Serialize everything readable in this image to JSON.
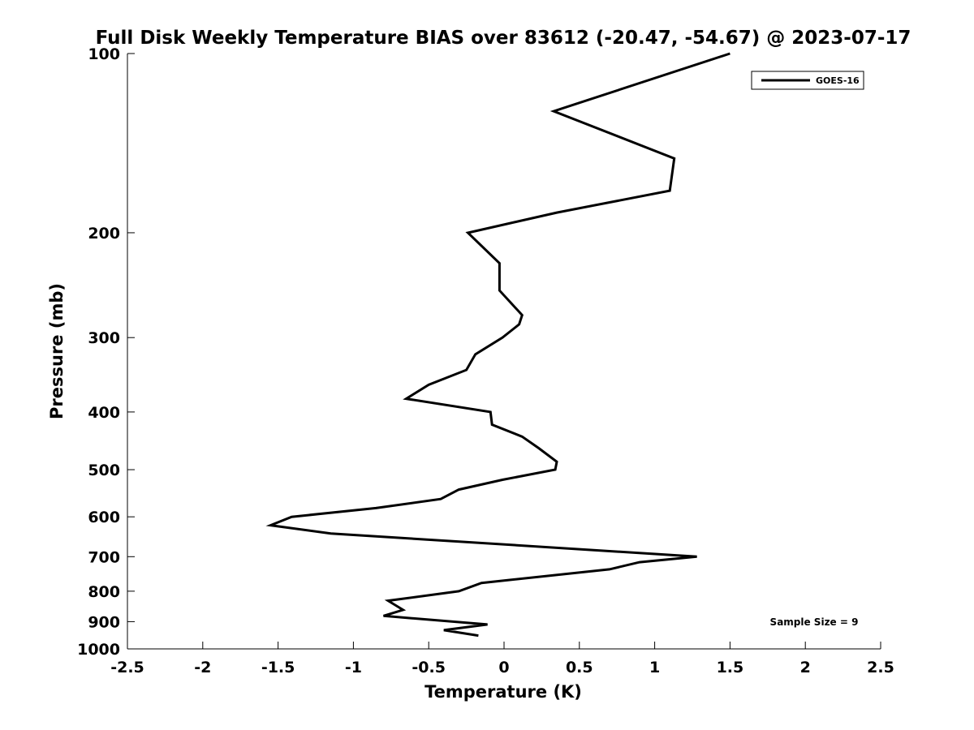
{
  "chart_data": {
    "type": "line",
    "title": "Full Disk Weekly Temperature BIAS over 83612 (-20.47, -54.67) @ 2023-07-17",
    "xlabel": "Temperature (K)",
    "ylabel": "Pressure (mb)",
    "xlim": [
      -2.5,
      2.5
    ],
    "ylim": [
      100,
      1000
    ],
    "y_scale": "log",
    "y_reversed": true,
    "x_ticks": [
      -2.5,
      -2,
      -1.5,
      -1,
      -0.5,
      0,
      0.5,
      1,
      1.5,
      2,
      2.5
    ],
    "x_tick_labels": [
      "-2.5",
      "-2",
      "-1.5",
      "-1",
      "-0.5",
      "0",
      "0.5",
      "1",
      "1.5",
      "2",
      "2.5"
    ],
    "y_ticks": [
      100,
      200,
      300,
      400,
      500,
      600,
      700,
      800,
      900,
      1000
    ],
    "y_tick_labels": [
      "100",
      "200",
      "300",
      "400",
      "500",
      "600",
      "700",
      "800",
      "900",
      "1000"
    ],
    "grid": false,
    "legend_position": "top-right",
    "annotation": "Sample Size = 9",
    "series": [
      {
        "name": "GOES-16",
        "color": "#000000",
        "points": [
          {
            "x": 1.5,
            "p": 100
          },
          {
            "x": 0.33,
            "p": 125
          },
          {
            "x": 1.13,
            "p": 150
          },
          {
            "x": 1.1,
            "p": 170
          },
          {
            "x": 0.35,
            "p": 185
          },
          {
            "x": -0.24,
            "p": 200
          },
          {
            "x": -0.03,
            "p": 225
          },
          {
            "x": -0.03,
            "p": 250
          },
          {
            "x": 0.12,
            "p": 275
          },
          {
            "x": 0.1,
            "p": 285
          },
          {
            "x": -0.01,
            "p": 300
          },
          {
            "x": -0.19,
            "p": 320
          },
          {
            "x": -0.25,
            "p": 340
          },
          {
            "x": -0.5,
            "p": 360
          },
          {
            "x": -0.65,
            "p": 380
          },
          {
            "x": -0.09,
            "p": 400
          },
          {
            "x": -0.08,
            "p": 420
          },
          {
            "x": 0.12,
            "p": 440
          },
          {
            "x": 0.23,
            "p": 460
          },
          {
            "x": 0.35,
            "p": 485
          },
          {
            "x": 0.34,
            "p": 500
          },
          {
            "x": -0.01,
            "p": 520
          },
          {
            "x": -0.3,
            "p": 540
          },
          {
            "x": -0.42,
            "p": 560
          },
          {
            "x": -0.85,
            "p": 580
          },
          {
            "x": -1.41,
            "p": 600
          },
          {
            "x": -1.55,
            "p": 620
          },
          {
            "x": -1.15,
            "p": 640
          },
          {
            "x": 1.28,
            "p": 700
          },
          {
            "x": 0.9,
            "p": 715
          },
          {
            "x": 0.7,
            "p": 735
          },
          {
            "x": -0.15,
            "p": 775
          },
          {
            "x": -0.3,
            "p": 800
          },
          {
            "x": -0.77,
            "p": 830
          },
          {
            "x": -0.67,
            "p": 860
          },
          {
            "x": -0.8,
            "p": 880
          },
          {
            "x": -0.11,
            "p": 910
          },
          {
            "x": -0.4,
            "p": 930
          },
          {
            "x": -0.17,
            "p": 950
          }
        ]
      }
    ]
  }
}
